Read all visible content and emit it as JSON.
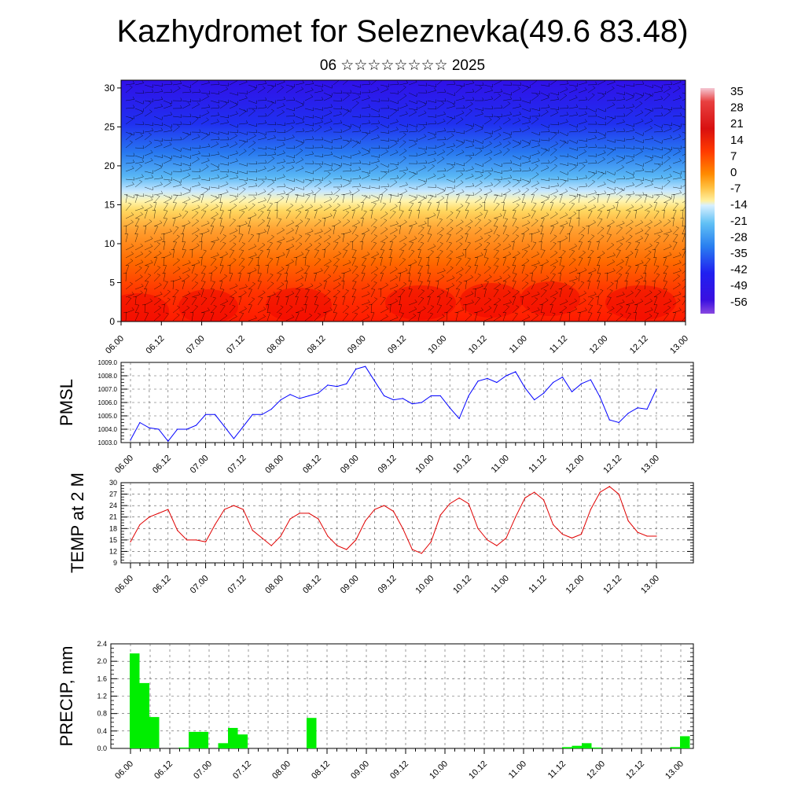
{
  "header": {
    "title": "Kazhydromet for Seleznevka(49.6 83.48)",
    "subtitle": "06 ☆☆☆☆☆☆☆☆ 2025"
  },
  "chart_data": [
    {
      "id": "cross-section",
      "type": "heatmap",
      "ylim": [
        0,
        31
      ],
      "yticks": [
        0,
        5,
        10,
        15,
        20,
        25,
        30
      ],
      "xticks": [
        "06.00",
        "06.12",
        "07.00",
        "07.12",
        "08.00",
        "08.12",
        "09.00",
        "09.12",
        "10.00",
        "10.12",
        "11.00",
        "11.12",
        "12.00",
        "12.12",
        "13.00"
      ],
      "colorbar": {
        "labels": [
          "35",
          "28",
          "21",
          "14",
          "7",
          "0",
          "-7",
          "-14",
          "-21",
          "-28",
          "-35",
          "-42",
          "-49",
          "-56"
        ],
        "colors": [
          "#f0b8c8",
          "#e03030",
          "#d81818",
          "#ff3000",
          "#ff8000",
          "#ffb000",
          "#ffe060",
          "#fff8c0",
          "#c0e8ff",
          "#40b0f0",
          "#2060f0",
          "#2020f0",
          "#4010e0",
          "#8040e0"
        ]
      },
      "overlay": "wind-barbs"
    },
    {
      "id": "pmsl",
      "type": "line",
      "ylabel": "PMSL",
      "ylim": [
        1003.0,
        1009.0
      ],
      "yticks": [
        "1003.0",
        "1004.0",
        "1005.0",
        "1006.0",
        "1007.0",
        "1008.0",
        "1009.0"
      ],
      "xticks": [
        "06.00",
        "06.12",
        "07.00",
        "07.12",
        "08.00",
        "08.12",
        "09.00",
        "09.12",
        "10.00",
        "10.12",
        "11.00",
        "11.12",
        "12.00",
        "12.12",
        "13.00"
      ],
      "x_step_hours": 3,
      "color": "#0000ff",
      "values": [
        1003.2,
        1004.5,
        1004.1,
        1004.0,
        1003.1,
        1004.0,
        1004.0,
        1004.3,
        1005.1,
        1005.1,
        1004.2,
        1003.3,
        1004.2,
        1005.1,
        1005.1,
        1005.5,
        1006.2,
        1006.6,
        1006.3,
        1006.5,
        1006.7,
        1007.3,
        1007.2,
        1007.4,
        1008.5,
        1008.7,
        1007.6,
        1006.5,
        1006.2,
        1006.3,
        1005.9,
        1006.0,
        1006.5,
        1006.5,
        1005.6,
        1004.8,
        1006.5,
        1007.6,
        1007.8,
        1007.5,
        1008.0,
        1008.3,
        1007.1,
        1006.2,
        1006.7,
        1007.5,
        1007.9,
        1006.8,
        1007.4,
        1007.7,
        1006.4,
        1004.7,
        1004.5,
        1005.2,
        1005.6,
        1005.5,
        1007.0
      ]
    },
    {
      "id": "temp",
      "type": "line",
      "ylabel": "TEMP at 2 M",
      "ylim": [
        9,
        30
      ],
      "yticks": [
        "9",
        "12",
        "15",
        "18",
        "21",
        "24",
        "27",
        "30"
      ],
      "xticks": [
        "06.00",
        "06.12",
        "07.00",
        "07.12",
        "08.00",
        "08.12",
        "09.00",
        "09.12",
        "10.00",
        "10.12",
        "11.00",
        "11.12",
        "12.00",
        "12.12",
        "13.00"
      ],
      "x_step_hours": 3,
      "color": "#e00000",
      "values": [
        14.5,
        19,
        21,
        22,
        23,
        17.5,
        15,
        15,
        14.5,
        19,
        23,
        24,
        23,
        17.5,
        15.5,
        13.5,
        16,
        20.5,
        22,
        22,
        20.5,
        16,
        13.5,
        12.5,
        15,
        20,
        23,
        24,
        22.5,
        18,
        12.5,
        11.5,
        14.5,
        21.5,
        24.5,
        26,
        24.5,
        18,
        15,
        13.5,
        15.5,
        21,
        26,
        27.5,
        25.5,
        19,
        16.5,
        15.5,
        16.5,
        23,
        27.5,
        29,
        27,
        20,
        17,
        16,
        16
      ]
    },
    {
      "id": "precip",
      "type": "bar",
      "ylabel": "PRECIP, mm",
      "ylim": [
        0.0,
        2.4
      ],
      "yticks": [
        "0.0",
        "0.4",
        "0.8",
        "1.2",
        "1.6",
        "2.0",
        "2.4"
      ],
      "xticks": [
        "06.00",
        "06.12",
        "07.00",
        "07.12",
        "08.00",
        "08.12",
        "09.00",
        "09.12",
        "10.00",
        "10.12",
        "11.00",
        "11.12",
        "12.00",
        "12.12",
        "13.00"
      ],
      "x_step_hours": 3,
      "color": "#00ee00",
      "values": [
        2.18,
        1.5,
        0.72,
        0,
        0,
        0.02,
        0.38,
        0.38,
        0,
        0.12,
        0.47,
        0.32,
        0,
        0,
        0,
        0,
        0,
        0,
        0.7,
        0,
        0,
        0,
        0,
        0,
        0,
        0,
        0,
        0,
        0,
        0,
        0,
        0,
        0,
        0,
        0,
        0,
        0,
        0,
        0,
        0,
        0,
        0,
        0,
        0,
        0.03,
        0.06,
        0.12,
        0.02,
        0,
        0,
        0,
        0,
        0,
        0,
        0,
        0.03,
        0.28
      ]
    }
  ]
}
